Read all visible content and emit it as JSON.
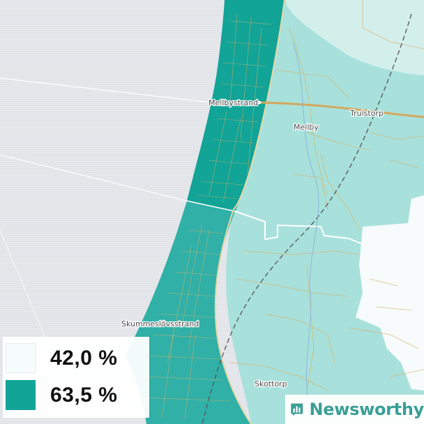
{
  "colors": {
    "sea": "#e6e8ec",
    "region_low": "#a8e1db",
    "region_low_pale": "#d3efec",
    "region_mid": "#30b0a6",
    "region_high": "#11a497",
    "white_area": "#f7fbfb",
    "roads": "#d8b26a",
    "brand_teal": "#3a9f95"
  },
  "places": [
    {
      "id": "mellbystrand",
      "name": "Mellbystrand"
    },
    {
      "id": "mellby",
      "name": "Mellby"
    },
    {
      "id": "trulstorp",
      "name": "Trulstorp"
    },
    {
      "id": "skummeslovsstrand",
      "name": "Skummeslövsstrand"
    },
    {
      "id": "skottorp",
      "name": "Skottorp"
    }
  ],
  "legend": {
    "items": [
      {
        "label": "42,0 %",
        "color": "#f7fdfc"
      },
      {
        "label": "63,5 %",
        "color": "#11a497"
      }
    ]
  },
  "brand": {
    "name": "Newsworthy",
    "icon": "bar-chart-speech-bubble-icon"
  }
}
